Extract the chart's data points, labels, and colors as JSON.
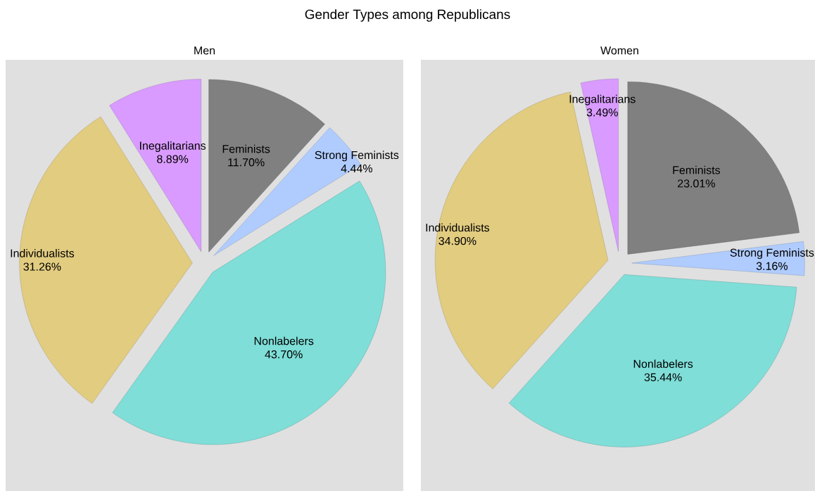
{
  "chart_data": [
    {
      "type": "pie",
      "title": "Gender Types among Republicans",
      "subtitle": "Men",
      "categories": [
        "Feminists",
        "Strong Feminists",
        "Nonlabelers",
        "Individualists",
        "Inegalitarians"
      ],
      "values": [
        11.7,
        4.44,
        43.7,
        31.26,
        8.89
      ],
      "value_labels": [
        "11.70%",
        "4.44%",
        "43.70%",
        "31.26%",
        "8.89%"
      ],
      "colors": [
        "#808080",
        "#b0ccff",
        "#7fded8",
        "#e2cc80",
        "#d99bff"
      ]
    },
    {
      "type": "pie",
      "subtitle": "Women",
      "categories": [
        "Feminists",
        "Strong Feminists",
        "Nonlabelers",
        "Individualists",
        "Inegalitarians"
      ],
      "values": [
        23.01,
        3.16,
        35.44,
        34.9,
        3.49
      ],
      "value_labels": [
        "23.01%",
        "3.16%",
        "35.44%",
        "34.90%",
        "3.49%"
      ],
      "colors": [
        "#808080",
        "#b0ccff",
        "#7fded8",
        "#e2cc80",
        "#d99bff"
      ]
    }
  ]
}
